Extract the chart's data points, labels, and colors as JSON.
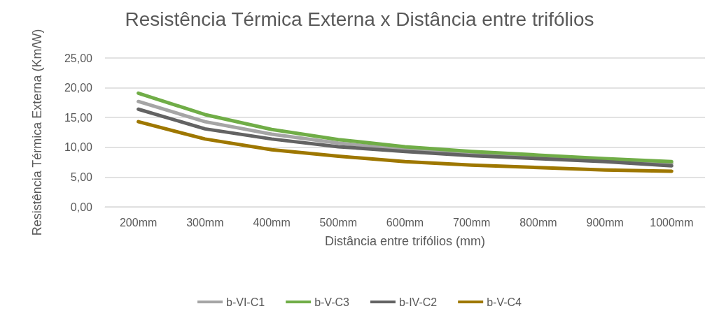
{
  "chart_data": {
    "type": "line",
    "title": "Resistência Térmica Externa x Distância entre trifólios",
    "xlabel": "Distância entre trifólios (mm)",
    "ylabel": "Resistência Térmica Externa (Km/W)",
    "categories": [
      "200mm",
      "300mm",
      "400mm",
      "500mm",
      "600mm",
      "700mm",
      "800mm",
      "900mm",
      "1000mm"
    ],
    "series": [
      {
        "name": "b-VI-C1",
        "color": "#a5a5a5",
        "values": [
          17.7,
          14.3,
          12.2,
          10.7,
          9.6,
          8.9,
          8.3,
          7.9,
          7.3
        ]
      },
      {
        "name": "b-V-C3",
        "color": "#70ad47",
        "values": [
          19.1,
          15.5,
          13.0,
          11.3,
          10.1,
          9.3,
          8.7,
          8.1,
          7.6
        ]
      },
      {
        "name": "b-IV-C2",
        "color": "#636363",
        "values": [
          16.4,
          13.1,
          11.4,
          10.1,
          9.3,
          8.6,
          8.1,
          7.6,
          6.9
        ]
      },
      {
        "name": "b-V-C4",
        "color": "#9e7700",
        "values": [
          14.3,
          11.4,
          9.6,
          8.5,
          7.6,
          7.0,
          6.6,
          6.2,
          6.0
        ]
      }
    ],
    "ylim": [
      0,
      25
    ],
    "yticks": [
      {
        "value": 0,
        "label": "0,00"
      },
      {
        "value": 5,
        "label": "5,00"
      },
      {
        "value": 10,
        "label": "10,00"
      },
      {
        "value": 15,
        "label": "15,00"
      },
      {
        "value": 20,
        "label": "20,00"
      },
      {
        "value": 25,
        "label": "25,00"
      }
    ],
    "grid": "y",
    "legend": "bottom",
    "marker": "none",
    "line_style": "solid"
  }
}
